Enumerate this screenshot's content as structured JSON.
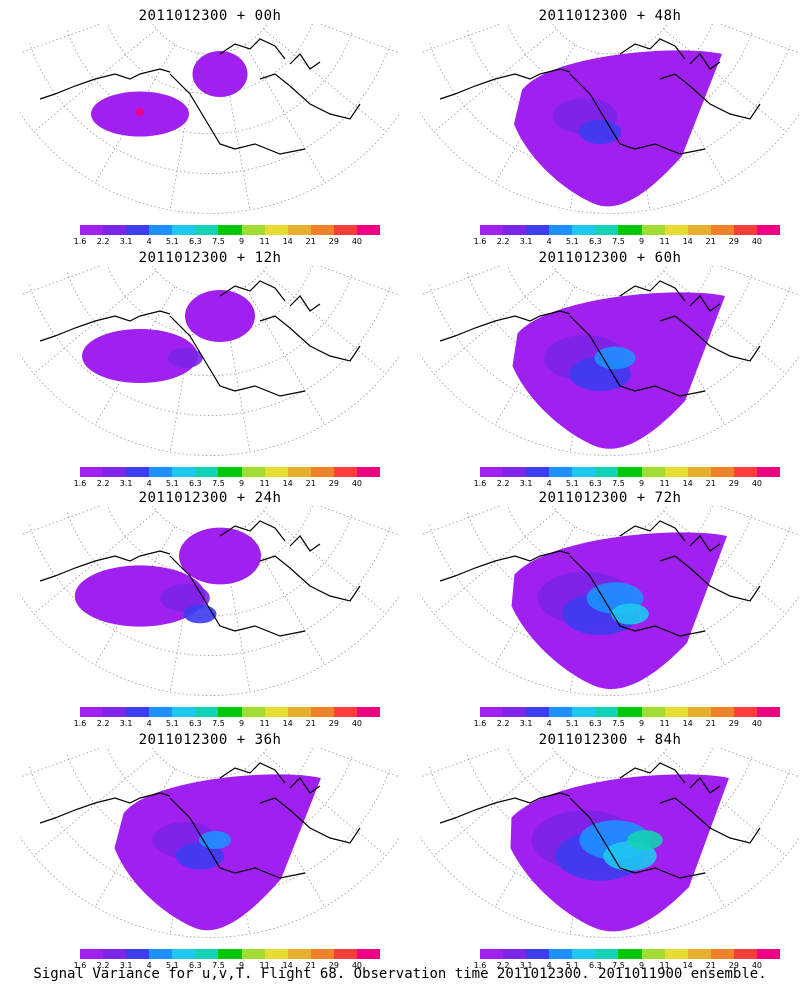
{
  "figure": {
    "footer": "Signal Variance for u,v,T. Flight 68. Observation time 2011012300. 2011011900 ensemble."
  },
  "colorbar": {
    "labels": [
      "1.6",
      "2.2",
      "3.1",
      "4",
      "5.1",
      "6.3",
      "7.5",
      "9",
      "11",
      "14",
      "21",
      "29",
      "40"
    ],
    "colors": [
      "#a020f0",
      "#7c24e8",
      "#3c3cf0",
      "#1e90ff",
      "#1ec8f0",
      "#14d2b4",
      "#00c800",
      "#a0dc32",
      "#e6dc32",
      "#e6af2d",
      "#f08228",
      "#fa3c3c",
      "#f00082"
    ]
  },
  "panels": [
    {
      "id": "p00",
      "title": "2011012300 + 00h",
      "spread": 0.15,
      "intensity": 1
    },
    {
      "id": "p48",
      "title": "2011012300 + 48h",
      "spread": 0.6,
      "intensity": 3
    },
    {
      "id": "p12",
      "title": "2011012300 + 12h",
      "spread": 0.3,
      "intensity": 2
    },
    {
      "id": "p60",
      "title": "2011012300 + 60h",
      "spread": 0.75,
      "intensity": 4
    },
    {
      "id": "p24",
      "title": "2011012300 + 24h",
      "spread": 0.42,
      "intensity": 3
    },
    {
      "id": "p72",
      "title": "2011012300 + 72h",
      "spread": 0.85,
      "intensity": 5
    },
    {
      "id": "p36",
      "title": "2011012300 + 36h",
      "spread": 0.55,
      "intensity": 4
    },
    {
      "id": "p84",
      "title": "2011012300 + 84h",
      "spread": 0.95,
      "intensity": 6
    }
  ]
}
